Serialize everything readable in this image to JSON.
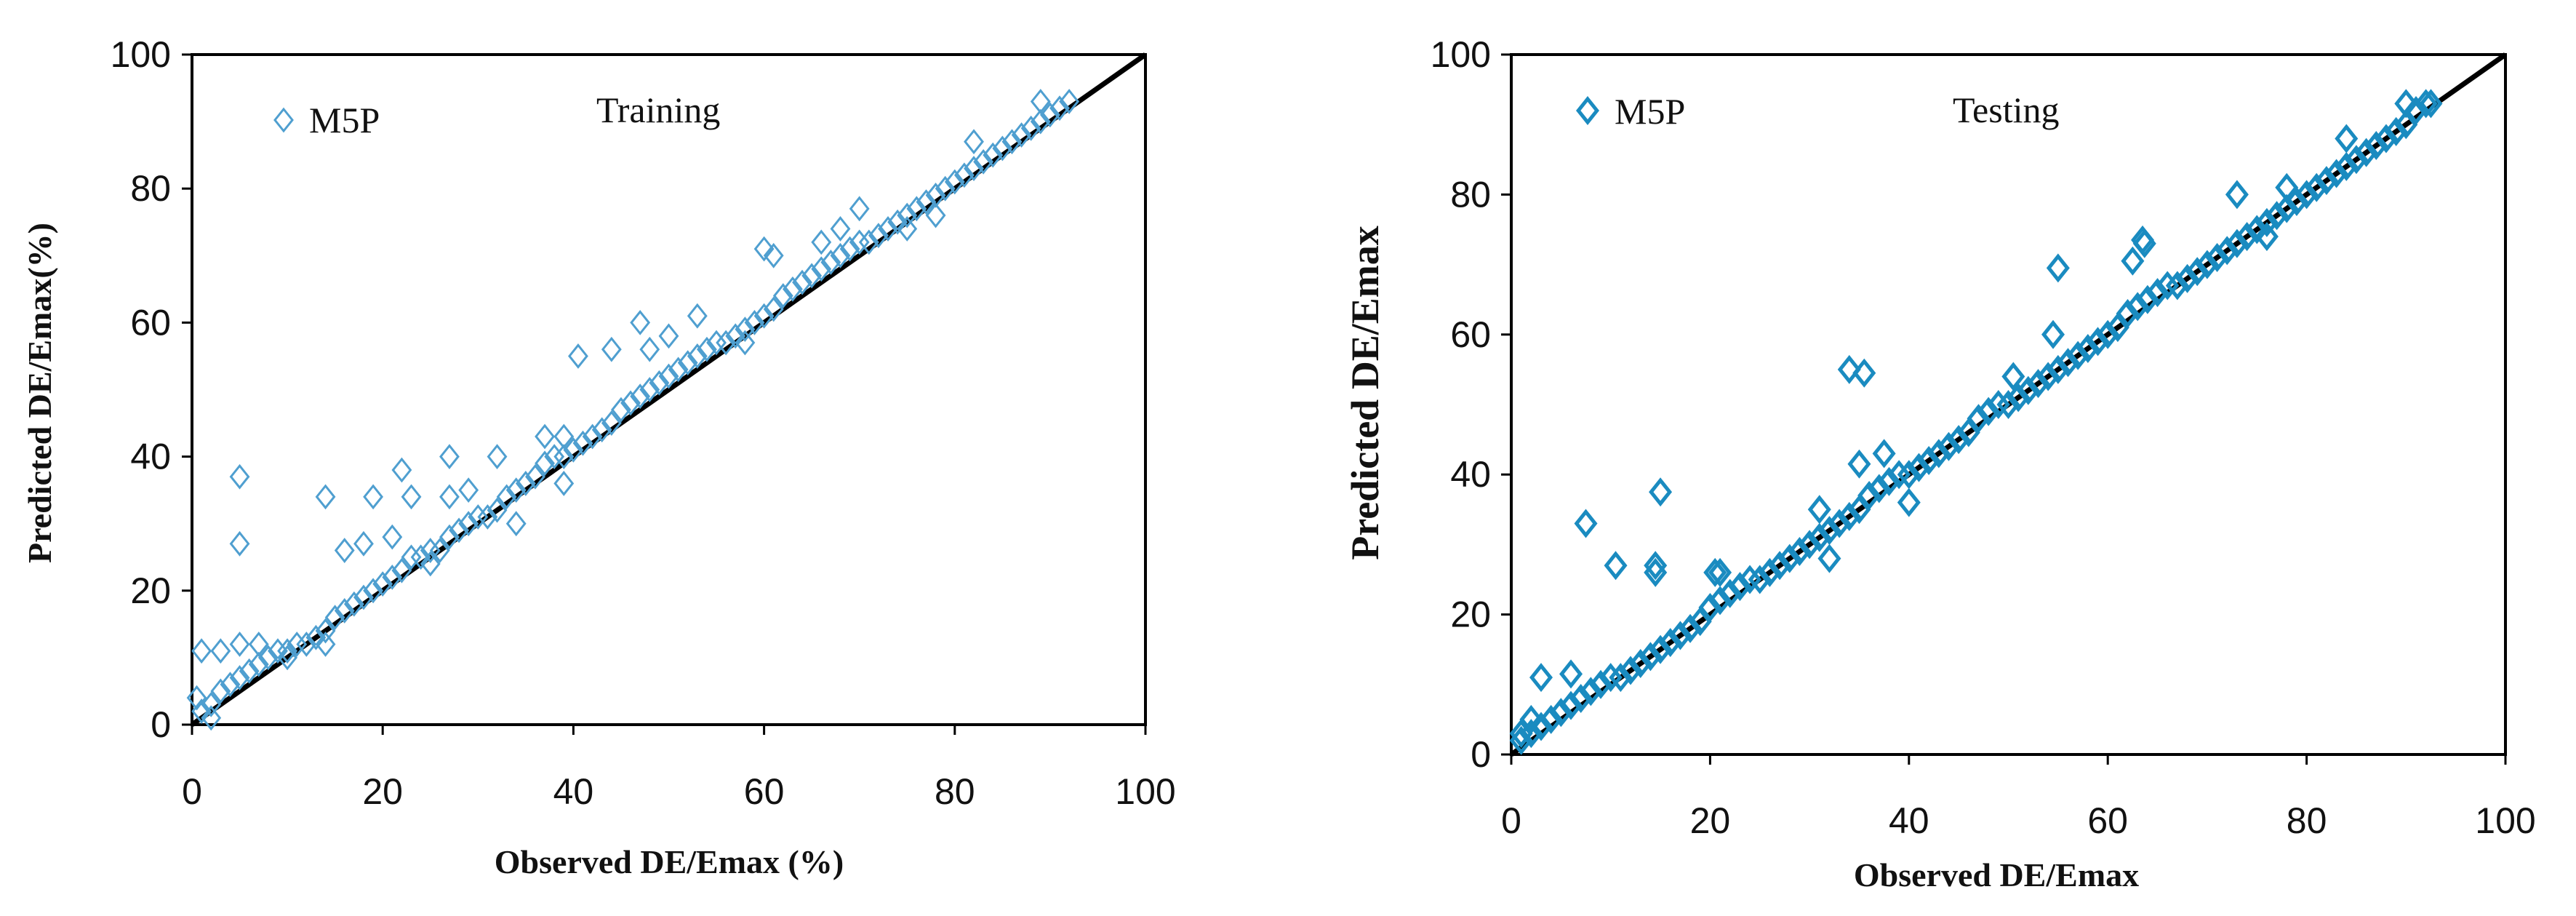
{
  "chart_data": [
    {
      "type": "scatter",
      "title": "Training",
      "xlabel": "Observed DE/Emax  (%)",
      "ylabel": "Predicted DE/Emax(%)",
      "xlim": [
        0,
        100
      ],
      "ylim": [
        0,
        100
      ],
      "xticks": [
        "0",
        "20",
        "40",
        "60",
        "80",
        "100"
      ],
      "yticks": [
        "0",
        "20",
        "40",
        "60",
        "80",
        "100"
      ],
      "grid": false,
      "legend": {
        "label": "M5P",
        "marker": "diamond-open",
        "placement": "top-left"
      },
      "reference_line": {
        "from": [
          0,
          0
        ],
        "to": [
          100,
          100
        ],
        "color": "#000000"
      },
      "color": "#4f9fd0",
      "points": [
        [
          1,
          2
        ],
        [
          2,
          3
        ],
        [
          3,
          5
        ],
        [
          4,
          6
        ],
        [
          5,
          7
        ],
        [
          6,
          8
        ],
        [
          7,
          9
        ],
        [
          8,
          10
        ],
        [
          9,
          11
        ],
        [
          10,
          11
        ],
        [
          11,
          12
        ],
        [
          12,
          12
        ],
        [
          13,
          13
        ],
        [
          14,
          14
        ],
        [
          15,
          16
        ],
        [
          16,
          17
        ],
        [
          17,
          18
        ],
        [
          18,
          19
        ],
        [
          19,
          20
        ],
        [
          20,
          21
        ],
        [
          21,
          22
        ],
        [
          22,
          23
        ],
        [
          23,
          25
        ],
        [
          24,
          25
        ],
        [
          25,
          26
        ],
        [
          26,
          26
        ],
        [
          27,
          28
        ],
        [
          28,
          29
        ],
        [
          29,
          30
        ],
        [
          30,
          31
        ],
        [
          31,
          31
        ],
        [
          32,
          32
        ],
        [
          33,
          34
        ],
        [
          34,
          35
        ],
        [
          35,
          36
        ],
        [
          36,
          37
        ],
        [
          37,
          39
        ],
        [
          38,
          40
        ],
        [
          39,
          40
        ],
        [
          40,
          41
        ],
        [
          41,
          42
        ],
        [
          42,
          43
        ],
        [
          43,
          44
        ],
        [
          44,
          45
        ],
        [
          45,
          47
        ],
        [
          46,
          48
        ],
        [
          47,
          49
        ],
        [
          48,
          50
        ],
        [
          49,
          51
        ],
        [
          50,
          52
        ],
        [
          51,
          53
        ],
        [
          52,
          54
        ],
        [
          53,
          55
        ],
        [
          54,
          56
        ],
        [
          55,
          57
        ],
        [
          56,
          57
        ],
        [
          57,
          58
        ],
        [
          58,
          59
        ],
        [
          59,
          60
        ],
        [
          60,
          61
        ],
        [
          61,
          62
        ],
        [
          62,
          64
        ],
        [
          63,
          65
        ],
        [
          64,
          66
        ],
        [
          65,
          67
        ],
        [
          66,
          68
        ],
        [
          67,
          69
        ],
        [
          68,
          70
        ],
        [
          69,
          71
        ],
        [
          70,
          72
        ],
        [
          71,
          72
        ],
        [
          72,
          73
        ],
        [
          73,
          74
        ],
        [
          74,
          75
        ],
        [
          75,
          76
        ],
        [
          76,
          77
        ],
        [
          77,
          78
        ],
        [
          78,
          79
        ],
        [
          79,
          80
        ],
        [
          80,
          81
        ],
        [
          81,
          82
        ],
        [
          82,
          83
        ],
        [
          83,
          84
        ],
        [
          84,
          85
        ],
        [
          85,
          86
        ],
        [
          86,
          87
        ],
        [
          87,
          88
        ],
        [
          88,
          89
        ],
        [
          89,
          90
        ],
        [
          90,
          91
        ],
        [
          91,
          92
        ],
        [
          92,
          93
        ],
        [
          5,
          37
        ],
        [
          5,
          27
        ],
        [
          14,
          34
        ],
        [
          19,
          34
        ],
        [
          23,
          34
        ],
        [
          22,
          38
        ],
        [
          27,
          40
        ],
        [
          32,
          40
        ],
        [
          27,
          34
        ],
        [
          29,
          35
        ],
        [
          16,
          26
        ],
        [
          18,
          27
        ],
        [
          21,
          28
        ],
        [
          40.5,
          55
        ],
        [
          44,
          56
        ],
        [
          47,
          60
        ],
        [
          50,
          58
        ],
        [
          48,
          56
        ],
        [
          37,
          43
        ],
        [
          39,
          43
        ],
        [
          60,
          71
        ],
        [
          61,
          70
        ],
        [
          70,
          77
        ],
        [
          68,
          74
        ],
        [
          66,
          72
        ],
        [
          82,
          87
        ],
        [
          89,
          93
        ],
        [
          53,
          61
        ],
        [
          1,
          11
        ],
        [
          3,
          11
        ],
        [
          5,
          12
        ],
        [
          7,
          12
        ],
        [
          0.5,
          4
        ],
        [
          2,
          1
        ],
        [
          10,
          10
        ],
        [
          14,
          12
        ],
        [
          25,
          24
        ],
        [
          34,
          30
        ],
        [
          39,
          36
        ],
        [
          58,
          57
        ],
        [
          75,
          74
        ],
        [
          78,
          76
        ]
      ]
    },
    {
      "type": "scatter",
      "title": "Testing",
      "xlabel": "Observed DE/Emax",
      "ylabel": "Predicted DE/Emax",
      "xlim": [
        0,
        100
      ],
      "ylim": [
        0,
        100
      ],
      "xticks": [
        "0",
        "20",
        "40",
        "60",
        "80",
        "100"
      ],
      "yticks": [
        "0",
        "20",
        "40",
        "60",
        "80",
        "100"
      ],
      "grid": false,
      "legend": {
        "label": "M5P",
        "marker": "diamond-open",
        "placement": "top-left"
      },
      "reference_line": {
        "from": [
          0,
          0
        ],
        "to": [
          100,
          100
        ],
        "color": "#000000"
      },
      "color": "#1a8bc0",
      "points": [
        [
          1,
          2
        ],
        [
          2,
          3
        ],
        [
          3,
          4
        ],
        [
          4,
          5
        ],
        [
          5,
          6
        ],
        [
          6,
          7
        ],
        [
          7,
          8
        ],
        [
          8,
          9
        ],
        [
          9,
          10
        ],
        [
          10,
          11
        ],
        [
          11,
          11
        ],
        [
          12,
          12
        ],
        [
          13,
          13
        ],
        [
          14,
          14
        ],
        [
          15,
          15
        ],
        [
          16,
          16
        ],
        [
          17,
          17
        ],
        [
          18,
          18
        ],
        [
          19,
          19
        ],
        [
          20,
          21
        ],
        [
          21,
          22
        ],
        [
          22,
          23
        ],
        [
          23,
          24
        ],
        [
          24,
          25
        ],
        [
          25,
          25
        ],
        [
          26,
          26
        ],
        [
          27,
          27
        ],
        [
          28,
          28
        ],
        [
          29,
          29
        ],
        [
          30,
          30
        ],
        [
          31,
          31
        ],
        [
          32,
          32
        ],
        [
          33,
          33
        ],
        [
          34,
          34
        ],
        [
          35,
          35
        ],
        [
          36,
          37
        ],
        [
          37,
          38
        ],
        [
          38,
          39
        ],
        [
          39,
          40
        ],
        [
          40,
          40
        ],
        [
          41,
          41
        ],
        [
          42,
          42
        ],
        [
          43,
          43
        ],
        [
          44,
          44
        ],
        [
          45,
          45
        ],
        [
          46,
          46
        ],
        [
          47,
          48
        ],
        [
          48,
          49
        ],
        [
          49,
          50
        ],
        [
          50,
          50
        ],
        [
          51,
          51
        ],
        [
          52,
          52
        ],
        [
          53,
          53
        ],
        [
          54,
          54
        ],
        [
          55,
          55
        ],
        [
          56,
          56
        ],
        [
          57,
          57
        ],
        [
          58,
          58
        ],
        [
          59,
          59
        ],
        [
          60,
          60
        ],
        [
          61,
          61
        ],
        [
          62,
          63
        ],
        [
          63,
          64
        ],
        [
          64,
          65
        ],
        [
          65,
          66
        ],
        [
          66,
          67
        ],
        [
          67,
          67
        ],
        [
          68,
          68
        ],
        [
          69,
          69
        ],
        [
          70,
          70
        ],
        [
          71,
          71
        ],
        [
          72,
          72
        ],
        [
          73,
          73
        ],
        [
          74,
          74
        ],
        [
          75,
          75
        ],
        [
          76,
          76
        ],
        [
          77,
          77
        ],
        [
          78,
          78
        ],
        [
          79,
          79
        ],
        [
          80,
          80
        ],
        [
          81,
          81
        ],
        [
          82,
          82
        ],
        [
          83,
          83
        ],
        [
          84,
          84
        ],
        [
          85,
          85
        ],
        [
          86,
          86
        ],
        [
          87,
          87
        ],
        [
          88,
          88
        ],
        [
          89,
          89
        ],
        [
          90,
          90
        ],
        [
          91,
          92
        ],
        [
          92,
          93
        ],
        [
          7.5,
          33
        ],
        [
          10.5,
          27
        ],
        [
          14.5,
          27
        ],
        [
          14.5,
          26
        ],
        [
          15,
          37.5
        ],
        [
          34,
          55
        ],
        [
          35.5,
          54.5
        ],
        [
          35,
          41.5
        ],
        [
          37.5,
          43
        ],
        [
          55,
          69.5
        ],
        [
          54.5,
          60
        ],
        [
          62.5,
          70.5
        ],
        [
          63.5,
          73.5
        ],
        [
          63.7,
          73
        ],
        [
          73,
          80
        ],
        [
          84,
          88
        ],
        [
          90,
          93
        ],
        [
          92.5,
          93
        ],
        [
          3,
          11
        ],
        [
          6,
          11.5
        ],
        [
          20.5,
          26
        ],
        [
          21,
          26
        ],
        [
          31,
          35
        ],
        [
          32,
          28
        ],
        [
          50.5,
          54
        ],
        [
          1,
          3
        ],
        [
          2,
          5
        ],
        [
          40,
          36
        ],
        [
          78,
          81
        ],
        [
          76,
          74
        ]
      ]
    }
  ]
}
